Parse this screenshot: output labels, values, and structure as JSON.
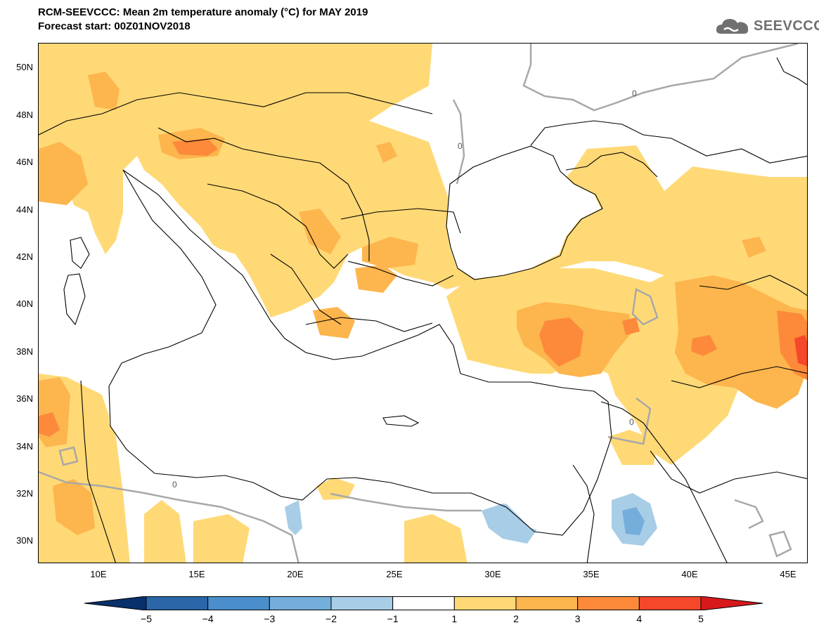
{
  "header": {
    "title_line1": "RCM-SEEVCCC: Mean 2m temperature anomaly (°C) for MAY 2019",
    "title_line2": "Forecast start: 00Z01NOV2018"
  },
  "logo": {
    "text": "SEEVCCC",
    "icon": "cloud-logo-icon"
  },
  "map": {
    "lat_labels": [
      "50N",
      "48N",
      "46N",
      "44N",
      "42N",
      "40N",
      "38N",
      "36N",
      "34N",
      "32N",
      "30N"
    ],
    "lon_labels": [
      "10E",
      "15E",
      "20E",
      "25E",
      "30E",
      "35E",
      "40E",
      "45E"
    ],
    "contour_label": "0",
    "lat_range": [
      29,
      51
    ],
    "lon_range": [
      7,
      46
    ]
  },
  "colorbar": {
    "labels": [
      "−5",
      "−4",
      "−3",
      "−2",
      "−1",
      "1",
      "2",
      "3",
      "4",
      "5"
    ],
    "colors": [
      "#08306b",
      "#2b66a8",
      "#4a8fcc",
      "#74aedb",
      "#a8cde6",
      "#ffffff",
      "#ffd976",
      "#fdb54d",
      "#fc8a3a",
      "#f5472a",
      "#d7191c"
    ]
  }
}
